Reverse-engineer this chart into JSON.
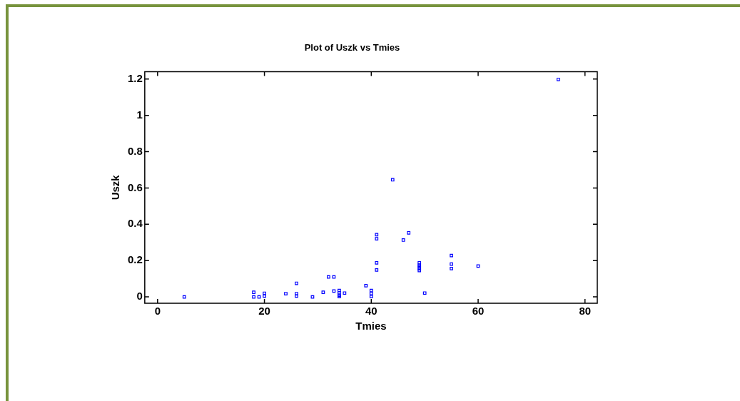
{
  "chart_data": {
    "type": "scatter",
    "title": "Plot of Uszk vs Tmies",
    "xlabel": "Tmies",
    "ylabel": "Uszk",
    "xlim": [
      -2.4,
      82.3
    ],
    "ylim": [
      -0.035,
      1.24
    ],
    "xticks": [
      0,
      20,
      40,
      60,
      80
    ],
    "yticks": [
      0,
      0.2,
      0.4,
      0.6,
      0.8,
      1,
      1.2
    ],
    "grid": false,
    "legend": false,
    "marker": "square",
    "series": [
      {
        "color": "#0000ff",
        "x": [
          5,
          18,
          18,
          19,
          20,
          20,
          24,
          26,
          26,
          26,
          29,
          31,
          32,
          33,
          33,
          34,
          34,
          34,
          34,
          35,
          39,
          40,
          40,
          40,
          41,
          41,
          41,
          41,
          44,
          46,
          47,
          49,
          49,
          49,
          49,
          49,
          50,
          55,
          55,
          55,
          60,
          75
        ],
        "values": [
          0,
          0.025,
          0,
          0,
          0.02,
          0.005,
          0.018,
          0.075,
          0.018,
          0.005,
          0,
          0.025,
          0.11,
          0.11,
          0.032,
          0.035,
          0.023,
          0.009,
          0.002,
          0.021,
          0.062,
          0.035,
          0.019,
          0.002,
          0.343,
          0.32,
          0.188,
          0.148,
          0.645,
          0.313,
          0.353,
          0.188,
          0.175,
          0.165,
          0.155,
          0.145,
          0.021,
          0.228,
          0.181,
          0.156,
          0.17,
          1.198
        ]
      }
    ]
  }
}
